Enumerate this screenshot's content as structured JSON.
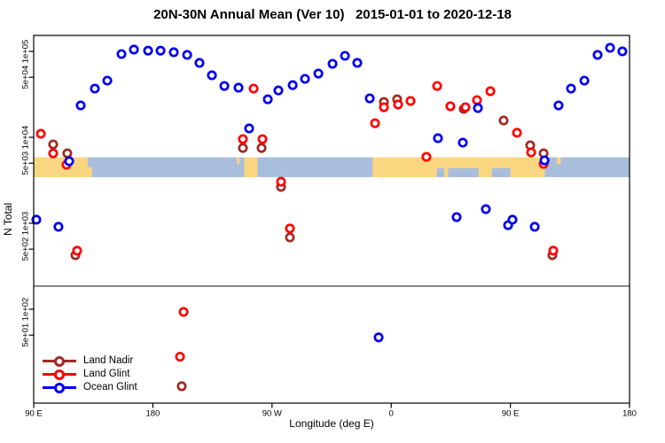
{
  "chart_data": {
    "type": "scatter",
    "title": "20N-30N Annual Mean (Ver 10)   2015-01-01 to 2020-12-18",
    "xlabel": "Longitude (deg E)",
    "ylabel": "N Total",
    "x_axis": {
      "note": "longitude wraps: 90E to 180 to 90W to 0 to 90E to 180 (plot units 90..540)",
      "range": [
        90,
        540
      ],
      "ticks": [
        {
          "pos": 90,
          "label": "90 E"
        },
        {
          "pos": 180,
          "label": "180"
        },
        {
          "pos": 270,
          "label": "90 W"
        },
        {
          "pos": 360,
          "label": "0"
        },
        {
          "pos": 450,
          "label": "90 E"
        },
        {
          "pos": 540,
          "label": "180"
        }
      ]
    },
    "y_axis": {
      "scale": "log",
      "range": [
        8,
        153000
      ],
      "ticks": [
        {
          "value": 100000,
          "label": "1e+05"
        },
        {
          "value": 50000,
          "label": "5e+04"
        },
        {
          "value": 10000,
          "label": "1e+04"
        },
        {
          "value": 5000,
          "label": "5e+03"
        },
        {
          "value": 1000,
          "label": "1e+03"
        },
        {
          "value": 500,
          "label": "5e+02"
        },
        {
          "value": 100,
          "label": "1e+02"
        },
        {
          "value": 50,
          "label": "5e+01"
        }
      ]
    },
    "reference_line": {
      "value": 186,
      "color": "#808080"
    },
    "map_band": {
      "top_value": 5860,
      "bottom_value": 3440,
      "ocean_color": "#A9BEDC",
      "land_color": "#FBD680",
      "land_segments": [
        [
          90,
          130.8
        ],
        [
          249,
          259
        ],
        [
          346,
          476
        ]
      ],
      "land_partial_bottom": [
        [
          130.8,
          134.2
        ]
      ],
      "land_specks_top": [
        [
          243.5,
          245.5
        ],
        [
          485,
          488
        ]
      ],
      "ocean_notches_bottom": [
        [
          394.5,
          400
        ],
        [
          403,
          426
        ],
        [
          436,
          450
        ]
      ]
    },
    "series": [
      {
        "name": "Land Nadir",
        "color": "#9E2B22",
        "points": [
          [
            104.7,
            8270
          ],
          [
            115.4,
            6520
          ],
          [
            121.5,
            425
          ],
          [
            201.8,
            12.7
          ],
          [
            248.0,
            7510
          ],
          [
            262.1,
            7510
          ],
          [
            276.8,
            2650
          ],
          [
            283.5,
            684
          ],
          [
            354.5,
            25800
          ],
          [
            364.5,
            27700
          ],
          [
            414.8,
            21400
          ],
          [
            444.9,
            15700
          ],
          [
            465.0,
            8070
          ],
          [
            475.1,
            6520
          ],
          [
            481.7,
            425
          ]
        ]
      },
      {
        "name": "Land Glint",
        "color": "#FF0000",
        "points": [
          [
            95.4,
            11000
          ],
          [
            104.7,
            6520
          ],
          [
            114.8,
            4790
          ],
          [
            122.8,
            480
          ],
          [
            200.5,
            28
          ],
          [
            203.2,
            93
          ],
          [
            248.0,
            9530
          ],
          [
            256.1,
            36900
          ],
          [
            262.8,
            9530
          ],
          [
            276.8,
            3050
          ],
          [
            283.5,
            870
          ],
          [
            347.8,
            14600
          ],
          [
            354.5,
            22400
          ],
          [
            365.2,
            24100
          ],
          [
            374.6,
            26500
          ],
          [
            386.6,
            5930
          ],
          [
            394.7,
            39600
          ],
          [
            404.7,
            23000
          ],
          [
            416.1,
            22400
          ],
          [
            424.8,
            27100
          ],
          [
            434.9,
            34400
          ],
          [
            455.0,
            11300
          ],
          [
            465.7,
            6680
          ],
          [
            475.1,
            4910
          ],
          [
            482.4,
            480
          ]
        ]
      },
      {
        "name": "Ocean Glint",
        "color": "#0000EE",
        "points": [
          [
            92.0,
            1100
          ],
          [
            108.7,
            910
          ],
          [
            116.8,
            5270
          ],
          [
            125.5,
            23500
          ],
          [
            136.2,
            36900
          ],
          [
            145.6,
            45700
          ],
          [
            156.3,
            93100
          ],
          [
            165.7,
            105000
          ],
          [
            176.4,
            102000
          ],
          [
            185.8,
            102000
          ],
          [
            195.8,
            97700
          ],
          [
            205.9,
            91000
          ],
          [
            215.2,
            73500
          ],
          [
            224.6,
            52700
          ],
          [
            234.0,
            39600
          ],
          [
            244.7,
            37800
          ],
          [
            252.7,
            12700
          ],
          [
            266.8,
            27700
          ],
          [
            274.8,
            35100
          ],
          [
            285.6,
            40500
          ],
          [
            294.9,
            47900
          ],
          [
            305.0,
            55200
          ],
          [
            315.7,
            71700
          ],
          [
            325.1,
            88800
          ],
          [
            334.4,
            73500
          ],
          [
            343.8,
            28400
          ],
          [
            350.5,
            47
          ],
          [
            395.3,
            9770
          ],
          [
            409.4,
            1180
          ],
          [
            414.1,
            8670
          ],
          [
            425.5,
            21900
          ],
          [
            431.5,
            1460
          ],
          [
            448.3,
            950
          ],
          [
            451.6,
            1100
          ],
          [
            468.4,
            910
          ],
          [
            475.8,
            5390
          ],
          [
            486.4,
            23500
          ],
          [
            495.8,
            36900
          ],
          [
            505.9,
            45700
          ],
          [
            515.9,
            91000
          ],
          [
            525.3,
            110000
          ],
          [
            534.6,
            100000
          ]
        ]
      }
    ],
    "legend": {
      "position": "bottom-left",
      "items": [
        {
          "label": "Land Nadir",
          "color": "#9E2B22"
        },
        {
          "label": "Land Glint",
          "color": "#FF0000"
        },
        {
          "label": "Ocean Glint",
          "color": "#0000EE"
        }
      ]
    }
  }
}
